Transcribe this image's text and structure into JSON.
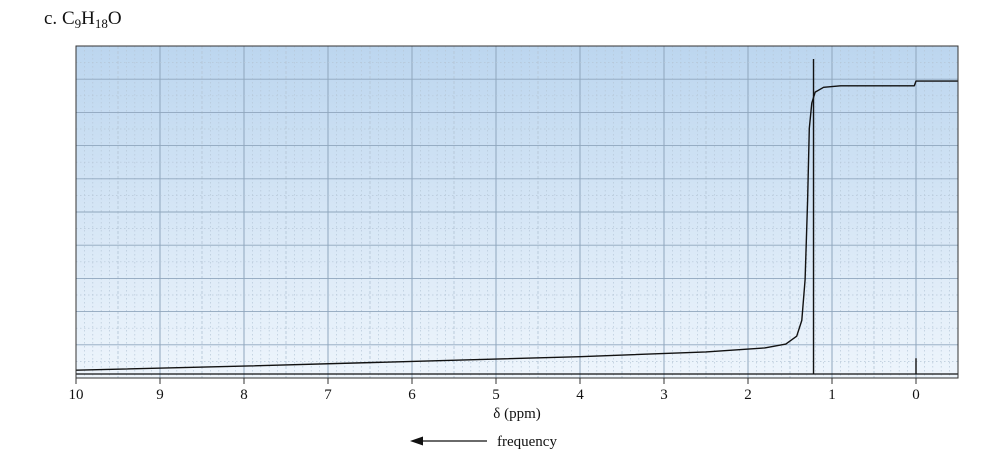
{
  "figure": {
    "label_prefix": "c. ",
    "formula": [
      {
        "text": "C",
        "sub": "9"
      },
      {
        "text": "H",
        "sub": "18"
      },
      {
        "text": "O",
        "sub": ""
      }
    ]
  },
  "chart_data": {
    "type": "line",
    "title": "c. C9H18O",
    "xlabel": "δ (ppm)",
    "direction_label": "frequency",
    "xlim": [
      10,
      -0.5
    ],
    "x_reversed": true,
    "x_ticks": [
      10,
      9,
      8,
      7,
      6,
      5,
      4,
      3,
      2,
      1,
      0
    ],
    "grid": true,
    "background": {
      "top": "#bcd6ef",
      "bottom": "#eef5fc",
      "grid_major": "#8fa6bd",
      "grid_minor": "#b6c7d8"
    },
    "spectrum": {
      "baseline": 0,
      "peaks": [
        {
          "shift": 1.22,
          "height": 1.0
        },
        {
          "shift": 0.0,
          "height": 0.05
        }
      ]
    },
    "integral_curve": {
      "points": [
        {
          "x": 10.0,
          "y": 0.012
        },
        {
          "x": 8.0,
          "y": 0.025
        },
        {
          "x": 6.0,
          "y": 0.04
        },
        {
          "x": 4.0,
          "y": 0.055
        },
        {
          "x": 2.5,
          "y": 0.07
        },
        {
          "x": 1.8,
          "y": 0.083
        },
        {
          "x": 1.55,
          "y": 0.095
        },
        {
          "x": 1.42,
          "y": 0.12
        },
        {
          "x": 1.36,
          "y": 0.17
        },
        {
          "x": 1.32,
          "y": 0.3
        },
        {
          "x": 1.29,
          "y": 0.55
        },
        {
          "x": 1.27,
          "y": 0.78
        },
        {
          "x": 1.24,
          "y": 0.86
        },
        {
          "x": 1.2,
          "y": 0.895
        },
        {
          "x": 1.1,
          "y": 0.91
        },
        {
          "x": 0.9,
          "y": 0.915
        },
        {
          "x": 0.02,
          "y": 0.915
        },
        {
          "x": 0.0,
          "y": 0.93
        },
        {
          "x": -0.5,
          "y": 0.93
        }
      ]
    }
  }
}
